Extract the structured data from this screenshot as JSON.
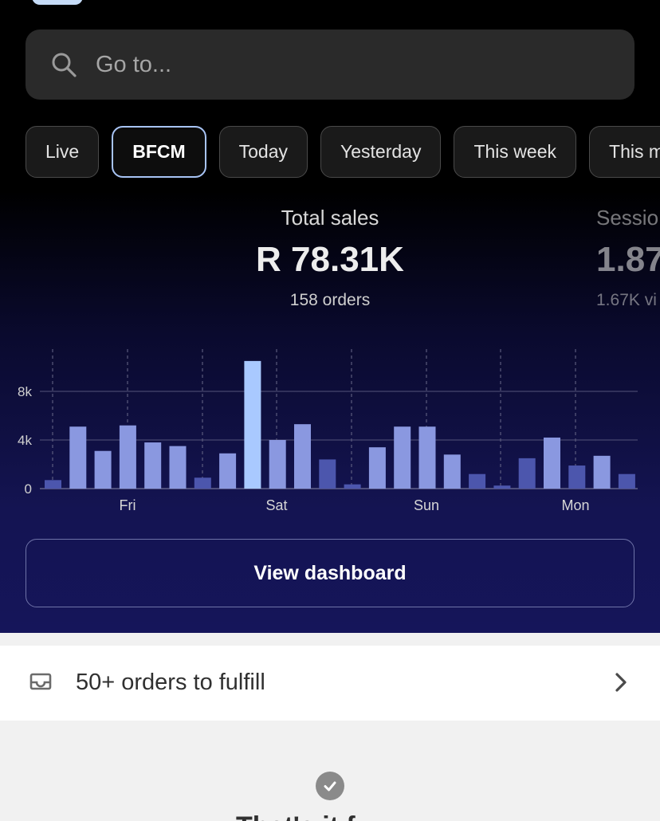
{
  "search": {
    "placeholder": "Go to..."
  },
  "tabs": [
    {
      "label": "Live",
      "active": false
    },
    {
      "label": "BFCM",
      "active": true
    },
    {
      "label": "Today",
      "active": false
    },
    {
      "label": "Yesterday",
      "active": false
    },
    {
      "label": "This week",
      "active": false
    },
    {
      "label": "This m",
      "active": false
    }
  ],
  "metrics": {
    "total_sales": {
      "label": "Total sales",
      "value": "R 78.31K",
      "sub": "158 orders"
    },
    "sessions": {
      "label": "Sessio",
      "value": "1.87",
      "sub": "1.67K vi"
    }
  },
  "chart_data": {
    "type": "bar",
    "x_ticks": [
      "Fri",
      "Sat",
      "Sun",
      "Mon"
    ],
    "y_ticks": [
      "8k",
      "4k",
      "0"
    ],
    "ylim": [
      0,
      12000
    ],
    "values": [
      700,
      5100,
      3100,
      5200,
      3800,
      3500,
      900,
      2900,
      10500,
      4000,
      5300,
      2400,
      350,
      3400,
      5100,
      5100,
      2800,
      1200,
      250,
      2500,
      4200,
      1900,
      2700,
      1200
    ],
    "colors": {
      "normal": "#8a98e0",
      "dim": "#4c56ad",
      "highlight": "#a9c9ff"
    },
    "highlight_index": 8,
    "dim_indices": [
      0,
      6,
      11,
      12,
      17,
      18,
      19,
      21,
      23
    ]
  },
  "buttons": {
    "view_dashboard": "View dashboard"
  },
  "tasks": {
    "fulfill": "50+ orders to fulfill"
  },
  "footer": {
    "heading": "That's it f"
  }
}
